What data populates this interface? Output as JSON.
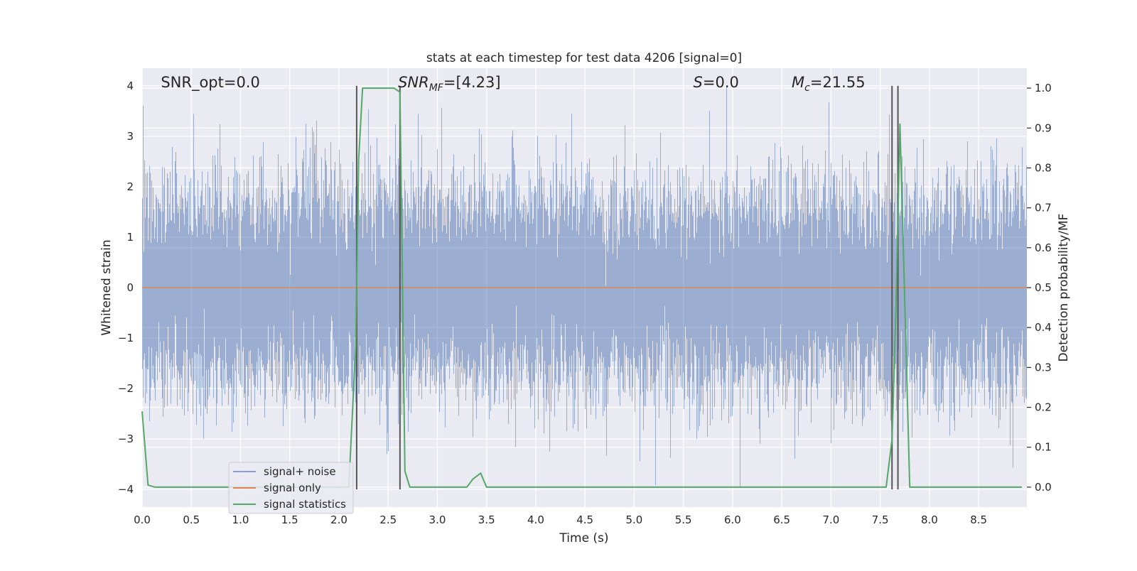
{
  "chart_data": {
    "type": "line",
    "title": "stats at each timestep for test data 4206 [signal=0]",
    "xlabel": "Time (s)",
    "ylabel": "Whitened strain",
    "y2label": "Detection probability/MF",
    "xlim": [
      0.0,
      8.99
    ],
    "ylim": [
      -4.35,
      4.35
    ],
    "y2lim": [
      -0.05,
      1.05
    ],
    "xticks": [
      0.0,
      0.5,
      1.0,
      1.5,
      2.0,
      2.5,
      3.0,
      3.5,
      4.0,
      4.5,
      5.0,
      5.5,
      6.0,
      6.5,
      7.0,
      7.5,
      8.0,
      8.5
    ],
    "xtick_labels": [
      "0.0",
      "0.5",
      "1.0",
      "1.5",
      "2.0",
      "2.5",
      "3.0",
      "3.5",
      "4.0",
      "4.5",
      "5.0",
      "5.5",
      "6.0",
      "6.5",
      "7.0",
      "7.5",
      "8.0",
      "8.5"
    ],
    "yticks": [
      -4,
      -3,
      -2,
      -1,
      0,
      1,
      2,
      3,
      4
    ],
    "ytick_labels": [
      "−4",
      "−3",
      "−2",
      "−1",
      "0",
      "1",
      "2",
      "3",
      "4"
    ],
    "y2ticks": [
      0.0,
      0.1,
      0.2,
      0.3,
      0.4,
      0.5,
      0.6,
      0.7,
      0.8,
      0.9,
      1.0
    ],
    "y2tick_labels": [
      "0.0",
      "0.1",
      "0.2",
      "0.3",
      "0.4",
      "0.5",
      "0.6",
      "0.7",
      "0.8",
      "0.9",
      "1.0"
    ],
    "grid": true,
    "legend_position": "lower-left",
    "series": [
      {
        "name": "signal+ noise",
        "color": "#4c72b0",
        "kind": "noise",
        "sample_rate_hz": 2048,
        "std": 1.0,
        "clip": [
          -4.0,
          4.0
        ]
      },
      {
        "name": "signal only",
        "color": "#dd8452",
        "x": [
          0.0,
          8.99
        ],
        "y": [
          0.0,
          0.0
        ]
      },
      {
        "name": "signal statistics",
        "color": "#55a868",
        "axis": "right",
        "x": [
          0.0,
          0.06,
          0.13,
          0.5,
          1.0,
          1.5,
          2.0,
          2.1,
          2.17,
          2.2,
          2.24,
          2.3,
          2.5,
          2.56,
          2.62,
          2.67,
          2.72,
          2.8,
          3.0,
          3.3,
          3.36,
          3.44,
          3.5,
          4.0,
          5.0,
          6.0,
          7.0,
          7.5,
          7.56,
          7.62,
          7.66,
          7.7,
          7.74,
          7.8,
          7.85,
          8.0,
          8.94
        ],
        "y": [
          0.19,
          0.005,
          0.0,
          0.0,
          0.0,
          0.0,
          0.0,
          0.0,
          0.35,
          0.82,
          1.0,
          1.0,
          1.0,
          1.0,
          0.99,
          0.04,
          0.0,
          0.0,
          0.0,
          0.0,
          0.02,
          0.035,
          0.0,
          0.0,
          0.0,
          0.0,
          0.0,
          0.0,
          0.0,
          0.12,
          0.45,
          0.91,
          0.55,
          0.0,
          0.0,
          0.0,
          0.0
        ]
      }
    ],
    "vlines": [
      2.18,
      2.62,
      7.62,
      7.68
    ],
    "vline_color": "#555555",
    "vline_range": [
      -4.0,
      4.0
    ],
    "annotations": [
      {
        "label": "SNR_opt=0.0",
        "x": 0.19,
        "y": 4.0
      },
      {
        "label": "SNR_MF=[4.23]",
        "x": 2.6,
        "y": 4.0
      },
      {
        "label": "S=0.0",
        "x": 5.6,
        "y": 4.0
      },
      {
        "label": "M_c=21.55",
        "x": 6.6,
        "y": 4.0
      }
    ]
  }
}
